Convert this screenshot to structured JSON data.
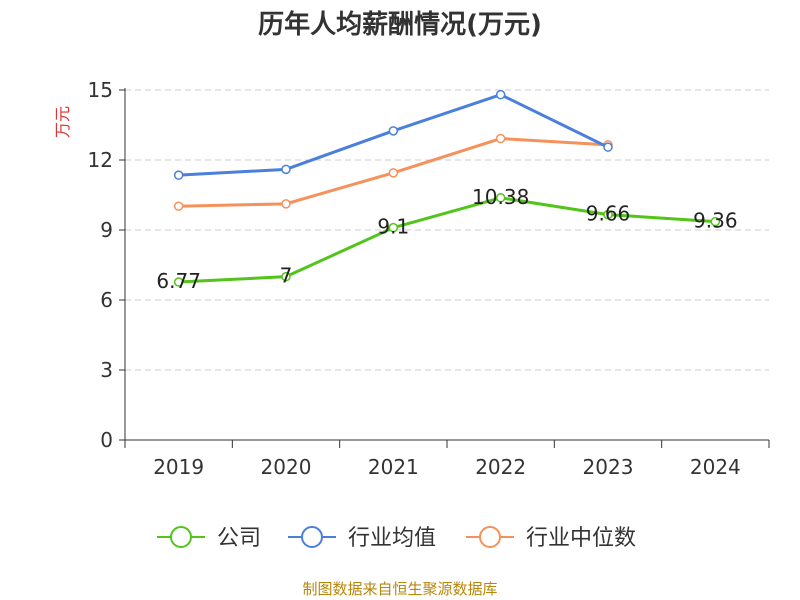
{
  "chart_data": {
    "type": "line",
    "title": "历年人均薪酬情况(万元)",
    "ylabel": "万元",
    "xlabel": "",
    "categories": [
      "2019",
      "2020",
      "2021",
      "2022",
      "2023",
      "2024"
    ],
    "ylim": [
      0,
      15
    ],
    "yticks": [
      0,
      3,
      6,
      9,
      12,
      15
    ],
    "grid": true,
    "legend_position": "bottom",
    "series": [
      {
        "name": "公司",
        "color": "#52c41a",
        "values": [
          6.77,
          7,
          9.1,
          10.38,
          9.66,
          9.36
        ],
        "labels": [
          "6.77",
          "7",
          "9.1",
          "10.38",
          "9.66",
          "9.36"
        ]
      },
      {
        "name": "行业均值",
        "color": "#4a7fdc",
        "values": [
          11.35,
          11.6,
          13.25,
          14.8,
          12.55,
          null
        ]
      },
      {
        "name": "行业中位数",
        "color": "#f5915a",
        "values": [
          10.02,
          10.12,
          11.45,
          12.92,
          12.65,
          null
        ]
      }
    ]
  },
  "source_note": "制图数据来自恒生聚源数据库",
  "ylabel_color": "#e03030"
}
